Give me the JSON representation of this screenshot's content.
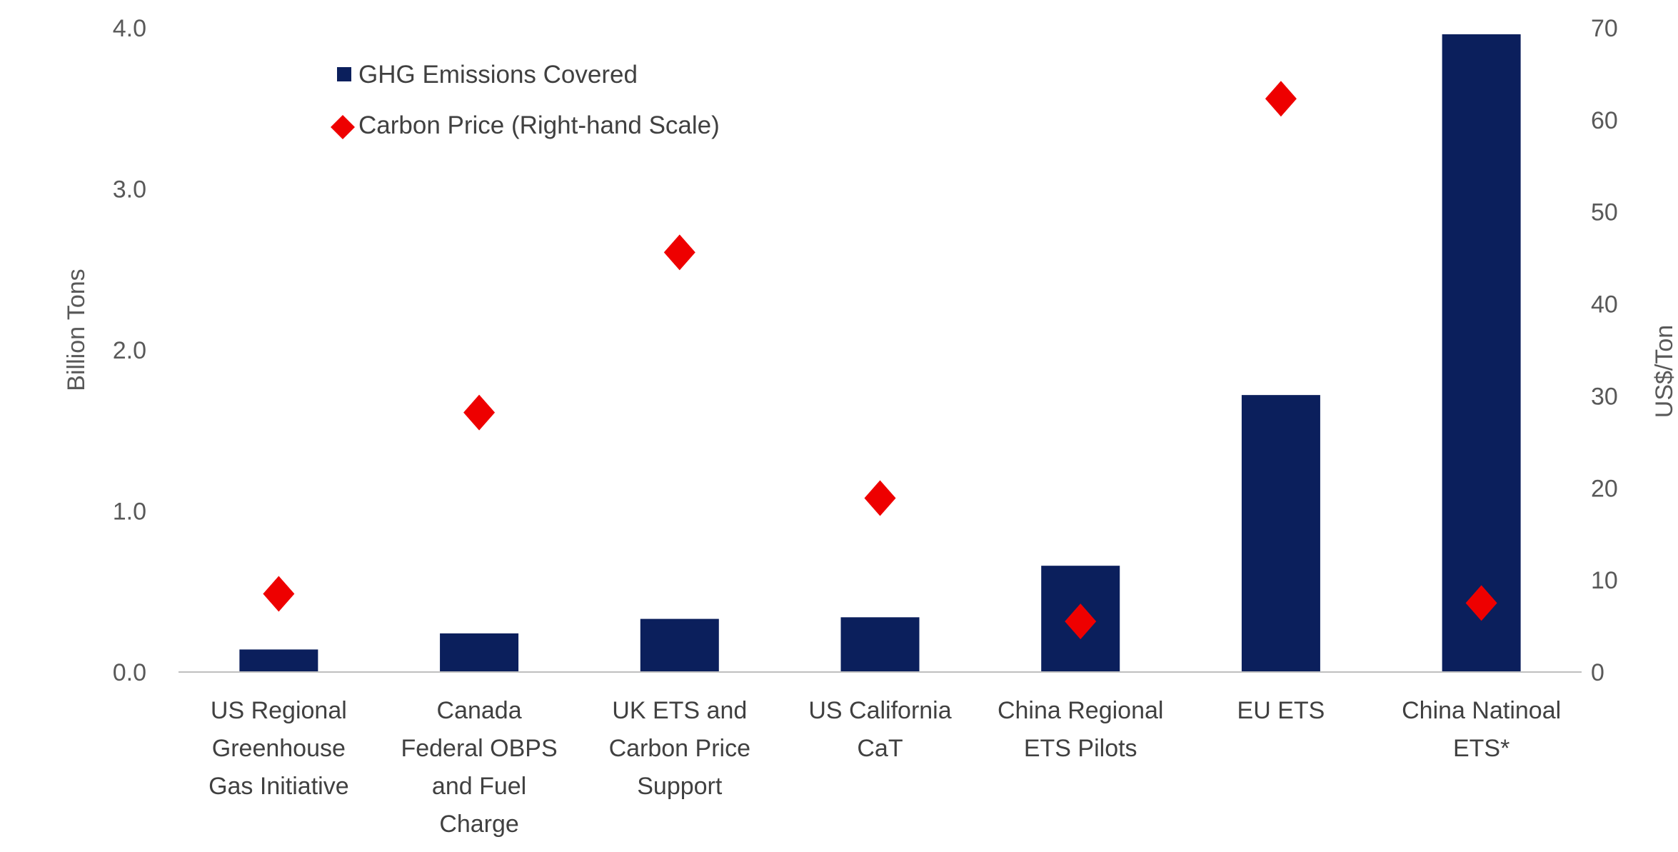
{
  "chart_data": {
    "type": "bar",
    "categories": [
      [
        "US Regional",
        "Greenhouse",
        "Gas Initiative"
      ],
      [
        "Canada",
        "Federal OBPS",
        "and Fuel",
        "Charge"
      ],
      [
        "UK ETS and",
        "Carbon Price",
        "Support"
      ],
      [
        "US California",
        "CaT"
      ],
      [
        "China Regional",
        "ETS Pilots"
      ],
      [
        "EU ETS"
      ],
      [
        "China Natinoal",
        "ETS*"
      ]
    ],
    "series": [
      {
        "name": "GHG Emissions Covered",
        "kind": "bar",
        "axis": "left",
        "color": "#0b1f5c",
        "values": [
          0.14,
          0.24,
          0.33,
          0.34,
          0.66,
          1.72,
          3.96
        ]
      },
      {
        "name": "Carbon Price (Right-hand Scale)",
        "kind": "scatter",
        "marker": "diamond",
        "axis": "right",
        "color": "#ee0000",
        "values": [
          8.5,
          28.2,
          45.6,
          18.9,
          5.5,
          62.3,
          7.5
        ]
      }
    ],
    "y_left": {
      "label": "Billion Tons",
      "ylim": [
        0,
        4
      ],
      "ticks": [
        "0.0",
        "1.0",
        "2.0",
        "3.0",
        "4.0"
      ]
    },
    "y_right": {
      "label": "US$/Ton",
      "ylim": [
        0,
        70
      ],
      "ticks": [
        "0",
        "10",
        "20",
        "30",
        "40",
        "50",
        "60",
        "70"
      ]
    },
    "legend_position": "top-left",
    "grid": false
  }
}
